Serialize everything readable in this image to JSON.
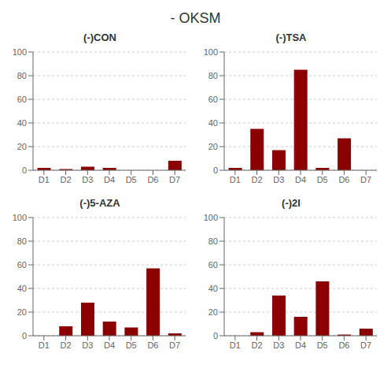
{
  "title": "- OKSM",
  "chart_data": [
    {
      "type": "bar",
      "title": "(-)CON",
      "categories": [
        "D1",
        "D2",
        "D3",
        "D4",
        "D5",
        "D6",
        "D7"
      ],
      "values": [
        2,
        1,
        3,
        2,
        0,
        0,
        8
      ],
      "color": "#8B0000",
      "ylim": [
        0,
        100
      ],
      "yticks": [
        0,
        20,
        40,
        60,
        80,
        100
      ],
      "grid": true
    },
    {
      "type": "bar",
      "title": "(-)TSA",
      "categories": [
        "D1",
        "D2",
        "D3",
        "D4",
        "D5",
        "D6",
        "D7"
      ],
      "values": [
        2,
        35,
        17,
        85,
        2,
        27,
        0
      ],
      "color": "#8B0000",
      "ylim": [
        0,
        100
      ],
      "yticks": [
        0,
        20,
        40,
        60,
        80,
        100
      ],
      "grid": true
    },
    {
      "type": "bar",
      "title": "(-)5-AZA",
      "categories": [
        "D1",
        "D2",
        "D3",
        "D4",
        "D5",
        "D6",
        "D7"
      ],
      "values": [
        0,
        8,
        28,
        12,
        7,
        57,
        2
      ],
      "color": "#8B0000",
      "ylim": [
        0,
        100
      ],
      "yticks": [
        0,
        20,
        40,
        60,
        80,
        100
      ],
      "grid": true
    },
    {
      "type": "bar",
      "title": "(-)2I",
      "categories": [
        "D1",
        "D2",
        "D3",
        "D4",
        "D5",
        "D6",
        "D7"
      ],
      "values": [
        0,
        3,
        34,
        16,
        46,
        1,
        6
      ],
      "color": "#8B0000",
      "ylim": [
        0,
        100
      ],
      "yticks": [
        0,
        20,
        40,
        60,
        80,
        100
      ],
      "grid": true
    }
  ]
}
